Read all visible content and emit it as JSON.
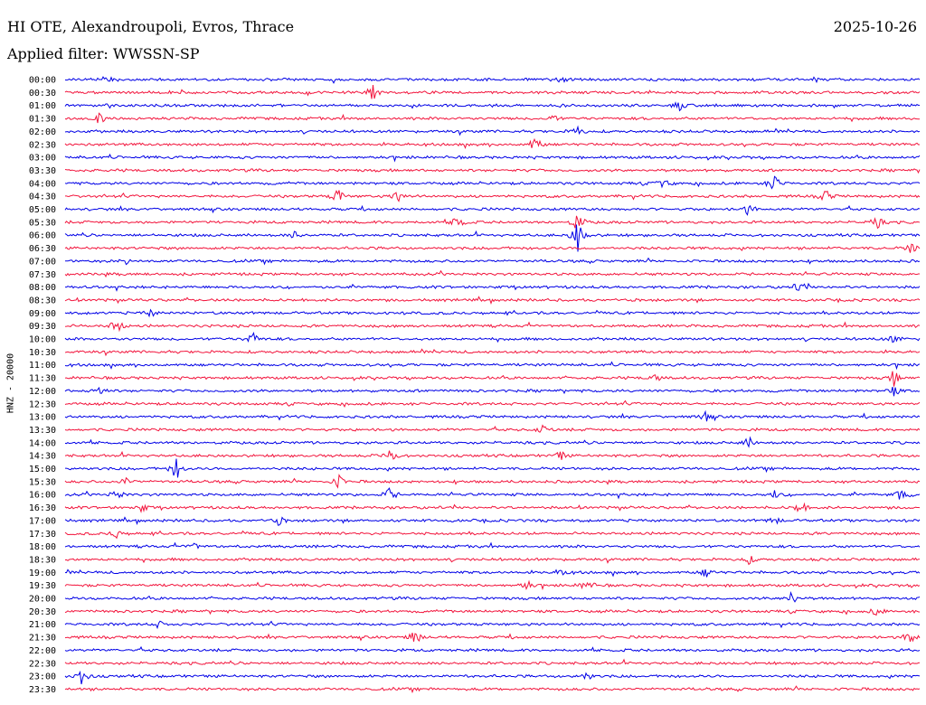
{
  "header": {
    "title": "HI OTE, Alexandroupoli, Evros, Thrace",
    "date": "2025-10-26",
    "filter": "Applied filter: WWSSN-SP"
  },
  "chart_data": {
    "type": "line",
    "title": "HI OTE, Alexandroupoli, Evros, Thrace",
    "subtitle": "Applied filter: WWSSN-SP",
    "ylabel": "HNZ - 20000",
    "xlabel": "",
    "colors": [
      "#0000e6",
      "#f2143c"
    ],
    "grid": false,
    "rows": [
      {
        "label": "00:00",
        "events": [
          [
            0.05,
            5
          ],
          [
            0.58,
            4
          ]
        ]
      },
      {
        "label": "00:30",
        "events": [
          [
            0.36,
            9
          ]
        ]
      },
      {
        "label": "01:00",
        "events": [
          [
            0.72,
            6
          ]
        ]
      },
      {
        "label": "01:30",
        "events": [
          [
            0.04,
            6
          ],
          [
            0.57,
            5
          ]
        ]
      },
      {
        "label": "02:00",
        "events": [
          [
            0.6,
            6
          ]
        ]
      },
      {
        "label": "02:30",
        "events": [
          [
            0.55,
            10
          ]
        ]
      },
      {
        "label": "03:00",
        "events": []
      },
      {
        "label": "03:30",
        "events": []
      },
      {
        "label": "04:00",
        "events": [
          [
            0.7,
            6
          ],
          [
            0.83,
            12
          ]
        ]
      },
      {
        "label": "04:30",
        "events": [
          [
            0.32,
            10
          ],
          [
            0.39,
            9
          ],
          [
            0.89,
            8
          ]
        ]
      },
      {
        "label": "05:00",
        "events": [
          [
            0.8,
            7
          ]
        ]
      },
      {
        "label": "05:30",
        "events": [
          [
            0.46,
            9
          ],
          [
            0.6,
            12
          ],
          [
            0.95,
            7
          ]
        ]
      },
      {
        "label": "06:00",
        "events": [
          [
            0.27,
            5
          ],
          [
            0.6,
            18
          ]
        ]
      },
      {
        "label": "06:30",
        "events": [
          [
            0.99,
            6
          ]
        ]
      },
      {
        "label": "07:00",
        "events": [
          [
            0.07,
            4
          ]
        ]
      },
      {
        "label": "07:30",
        "events": []
      },
      {
        "label": "08:00",
        "events": [
          [
            0.86,
            8
          ]
        ]
      },
      {
        "label": "08:30",
        "events": []
      },
      {
        "label": "09:00",
        "events": [
          [
            0.1,
            4
          ]
        ]
      },
      {
        "label": "09:30",
        "events": [
          [
            0.06,
            10
          ]
        ]
      },
      {
        "label": "10:00",
        "events": [
          [
            0.22,
            9
          ],
          [
            0.97,
            6
          ]
        ]
      },
      {
        "label": "10:30",
        "events": []
      },
      {
        "label": "11:00",
        "events": []
      },
      {
        "label": "11:30",
        "events": [
          [
            0.69,
            5
          ],
          [
            0.97,
            9
          ]
        ]
      },
      {
        "label": "12:00",
        "events": [
          [
            0.04,
            6
          ],
          [
            0.97,
            6
          ]
        ]
      },
      {
        "label": "12:30",
        "events": []
      },
      {
        "label": "13:00",
        "events": [
          [
            0.75,
            5
          ]
        ]
      },
      {
        "label": "13:30",
        "events": [
          [
            0.56,
            6
          ]
        ]
      },
      {
        "label": "14:00",
        "events": [
          [
            0.8,
            6
          ]
        ]
      },
      {
        "label": "14:30",
        "events": [
          [
            0.38,
            10
          ],
          [
            0.58,
            5
          ]
        ]
      },
      {
        "label": "15:00",
        "events": [
          [
            0.13,
            14
          ]
        ]
      },
      {
        "label": "15:30",
        "events": [
          [
            0.07,
            5
          ],
          [
            0.32,
            8
          ]
        ]
      },
      {
        "label": "16:00",
        "events": [
          [
            0.06,
            6
          ],
          [
            0.38,
            8
          ],
          [
            0.83,
            5
          ],
          [
            0.98,
            11
          ]
        ]
      },
      {
        "label": "16:30",
        "events": [
          [
            0.09,
            5
          ],
          [
            0.86,
            9
          ]
        ]
      },
      {
        "label": "17:00",
        "events": [
          [
            0.25,
            5
          ],
          [
            0.83,
            5
          ]
        ]
      },
      {
        "label": "17:30",
        "events": [
          [
            0.06,
            5
          ]
        ]
      },
      {
        "label": "18:00",
        "events": [
          [
            0.15,
            4
          ]
        ]
      },
      {
        "label": "18:30",
        "events": [
          [
            0.8,
            5
          ]
        ]
      },
      {
        "label": "19:00",
        "events": [
          [
            0.58,
            5
          ],
          [
            0.75,
            6
          ]
        ]
      },
      {
        "label": "19:30",
        "events": [
          [
            0.54,
            6
          ],
          [
            0.61,
            8
          ]
        ]
      },
      {
        "label": "20:00",
        "events": [
          [
            0.85,
            8
          ]
        ]
      },
      {
        "label": "20:30",
        "events": [
          [
            0.95,
            5
          ]
        ]
      },
      {
        "label": "21:00",
        "events": [
          [
            0.11,
            4
          ]
        ]
      },
      {
        "label": "21:30",
        "events": [
          [
            0.41,
            10
          ],
          [
            0.99,
            11
          ]
        ]
      },
      {
        "label": "22:00",
        "events": []
      },
      {
        "label": "22:30",
        "events": []
      },
      {
        "label": "23:00",
        "events": [
          [
            0.02,
            10
          ],
          [
            0.61,
            5
          ]
        ]
      },
      {
        "label": "23:30",
        "events": []
      }
    ]
  }
}
